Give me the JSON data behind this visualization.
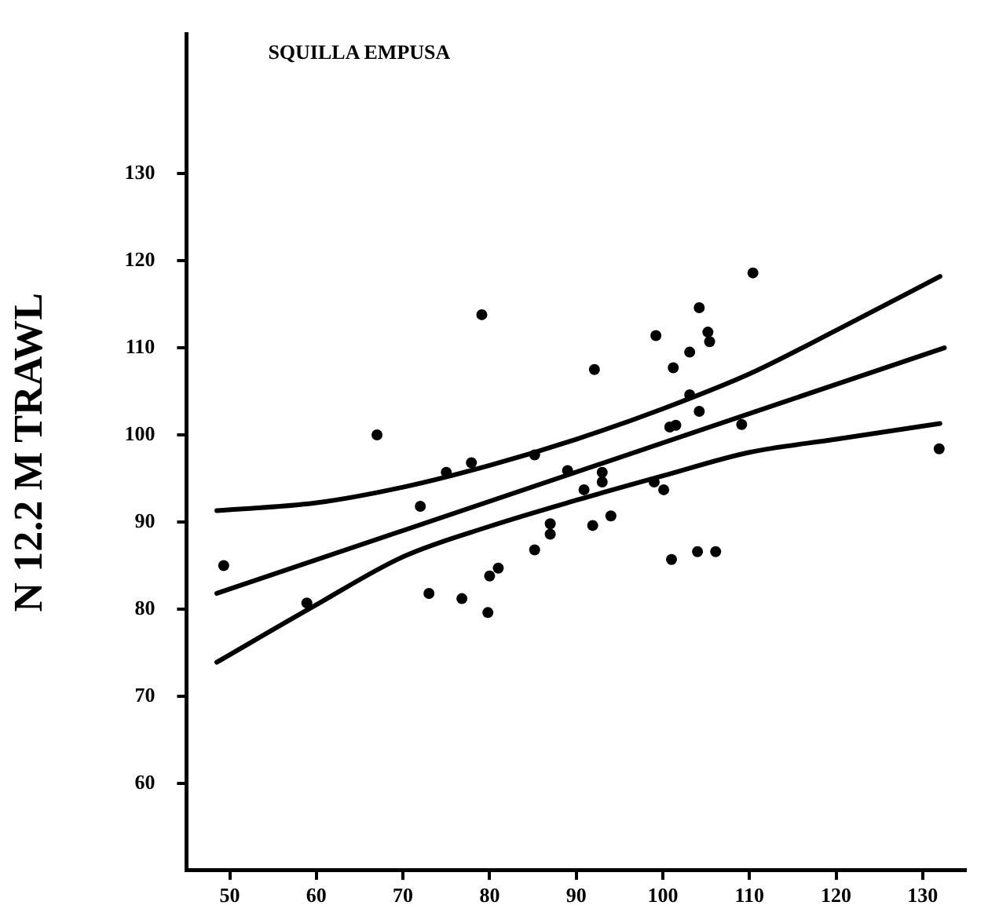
{
  "chart_data": {
    "type": "scatter",
    "title": "SQUILLA EMPUSA",
    "ylabel": "N 12.2 M TRAWL",
    "xlim": [
      45,
      135
    ],
    "xticks": [
      50,
      60,
      70,
      80,
      90,
      100,
      110,
      120,
      130
    ],
    "ylim": [
      50,
      146
    ],
    "yticks": [
      60,
      70,
      80,
      90,
      100,
      110,
      120,
      130
    ],
    "grid": false,
    "legend": false,
    "series": [
      {
        "type": "scatter",
        "marker": "circle",
        "color": "#000000",
        "x": [
          49.3,
          58.9,
          67,
          72,
          73,
          75,
          76.8,
          77.9,
          79.8,
          80,
          81,
          79.1,
          85.2,
          85.2,
          87,
          87,
          89,
          90.9,
          92.1,
          93,
          93,
          91.9,
          94,
          99.2,
          99,
          100.1,
          101,
          100.8,
          101.5,
          101.2,
          103.1,
          103.1,
          104.2,
          104.2,
          104,
          106.1,
          105.2,
          105.4,
          110.4,
          109.1,
          131.9
        ],
        "values": [
          85,
          80.7,
          100,
          91.8,
          81.8,
          95.7,
          81.2,
          96.8,
          79.6,
          83.8,
          84.7,
          113.8,
          86.8,
          97.7,
          89.8,
          88.6,
          95.9,
          93.7,
          107.5,
          95.7,
          94.6,
          89.6,
          90.7,
          111.4,
          94.6,
          93.7,
          85.7,
          100.9,
          101.1,
          107.7,
          109.5,
          104.6,
          102.7,
          114.6,
          86.6,
          86.6,
          111.8,
          110.7,
          118.6,
          101.2,
          98.4
        ]
      },
      {
        "type": "line",
        "marker": "none",
        "color": "#000000",
        "x": [
          48.5,
          132.5
        ],
        "values": [
          81.8,
          110
        ]
      },
      {
        "type": "line",
        "marker": "none",
        "color": "#000000",
        "x": [
          48.5,
          60,
          70,
          80,
          90,
          100,
          110,
          120,
          132
        ],
        "values": [
          91.3,
          92.2,
          94,
          96.5,
          99.5,
          103,
          107,
          112,
          118.2
        ]
      },
      {
        "type": "line",
        "marker": "none",
        "color": "#000000",
        "x": [
          48.5,
          60,
          70,
          80,
          90,
          100,
          110,
          120,
          132
        ],
        "values": [
          73.9,
          80.5,
          86,
          89.5,
          92.5,
          95.3,
          98,
          99.5,
          101.3
        ]
      }
    ]
  }
}
